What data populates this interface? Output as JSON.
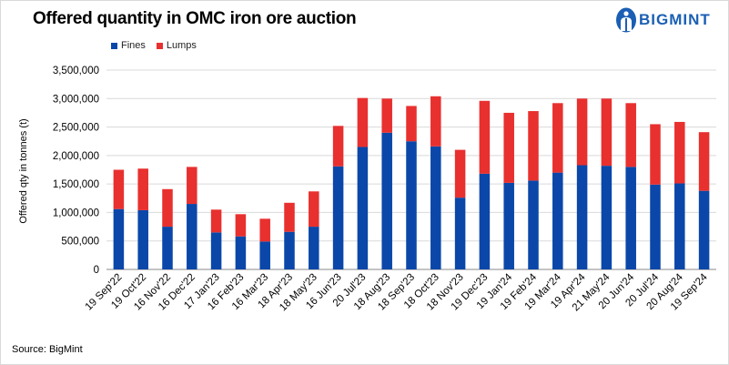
{
  "header": {
    "title": "Offered quantity in OMC iron ore auction",
    "logo_text": "BIGMINT",
    "logo_icon": "bigmint-logo-icon"
  },
  "footer": {
    "source": "Source: BigMint"
  },
  "colors": {
    "fines": "#0a47a9",
    "lumps": "#e8302f",
    "brand": "#1a5fb4"
  },
  "chart_data": {
    "type": "bar",
    "stacked": true,
    "title": "Offered quantity in OMC iron ore auction",
    "xlabel": "",
    "ylabel": "Offered qty in tonnes (t)",
    "ylim": [
      0,
      3500000
    ],
    "yticks": [
      "0",
      "500,000",
      "1,000,000",
      "1,500,000",
      "2,000,000",
      "2,500,000",
      "3,000,000",
      "3,500,000"
    ],
    "ytick_values": [
      0,
      500000,
      1000000,
      1500000,
      2000000,
      2500000,
      3000000,
      3500000
    ],
    "grid": true,
    "legend_position": "top-left",
    "categories": [
      "19 Sep'22",
      "19 Oct'22",
      "16 Nov'22",
      "16 Dec'22",
      "17 Jan'23",
      "16 Feb'23",
      "16 Mar'23",
      "18 Apr'23",
      "18 May'23",
      "16 Jun'23",
      "20 Jul'23",
      "18 Aug'23",
      "18 Sep'23",
      "18 Oct'23",
      "18 Nov'23",
      "19 Dec'23",
      "19 Jan'24",
      "19 Feb'24",
      "19 Mar'24",
      "19 Apr'24",
      "21 May'24",
      "20 Jun'24",
      "20 Jul'24",
      "20 Aug'24",
      "19 Sep'24"
    ],
    "series": [
      {
        "name": "Fines",
        "values": [
          1060000,
          1040000,
          750000,
          1150000,
          650000,
          580000,
          490000,
          660000,
          750000,
          1810000,
          2150000,
          2400000,
          2250000,
          2160000,
          1260000,
          1680000,
          1520000,
          1560000,
          1700000,
          1830000,
          1820000,
          1800000,
          1490000,
          1510000,
          1380000
        ]
      },
      {
        "name": "Lumps",
        "values": [
          690000,
          730000,
          660000,
          650000,
          400000,
          390000,
          400000,
          510000,
          620000,
          710000,
          860000,
          600000,
          620000,
          880000,
          840000,
          1280000,
          1230000,
          1220000,
          1220000,
          1170000,
          1180000,
          1120000,
          1060000,
          1080000,
          1030000
        ]
      }
    ]
  }
}
